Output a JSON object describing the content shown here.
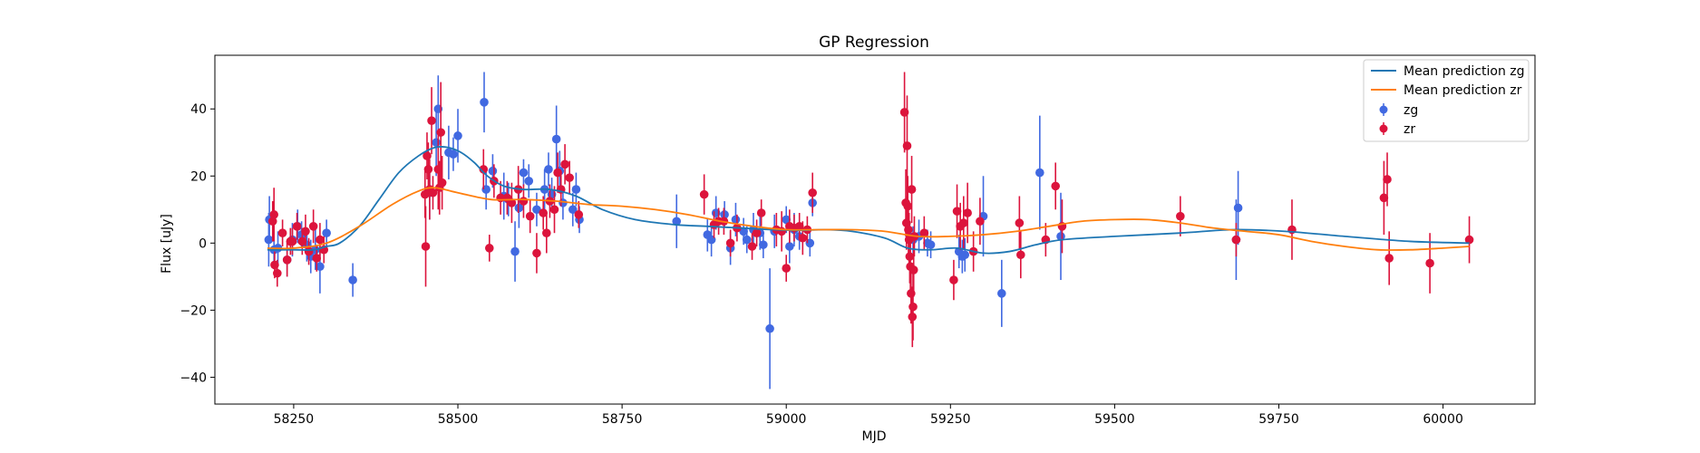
{
  "chart_data": {
    "type": "scatter",
    "title": "GP Regression",
    "xlabel": "MJD",
    "ylabel": "Flux [uJy]",
    "xlim": [
      58130,
      60140
    ],
    "ylim": [
      -48,
      56
    ],
    "xticks": [
      58250,
      58500,
      58750,
      59000,
      59250,
      59500,
      59750,
      60000
    ],
    "yticks": [
      -40,
      -20,
      0,
      20,
      40
    ],
    "grid": false,
    "legend_position": "top-right",
    "series": [
      {
        "name": "Mean prediction zg",
        "kind": "line",
        "color": "#1f77b4",
        "x": [
          58210,
          58250,
          58280,
          58300,
          58320,
          58350,
          58380,
          58410,
          58440,
          58465,
          58485,
          58505,
          58525,
          58545,
          58570,
          58600,
          58640,
          58680,
          58720,
          58770,
          58830,
          58880,
          58930,
          58980,
          59020,
          59060,
          59100,
          59150,
          59185,
          59220,
          59260,
          59300,
          59340,
          59380,
          59420,
          59500,
          59600,
          59680,
          59760,
          59850,
          59950,
          60040
        ],
        "y": [
          -2,
          -2,
          -2,
          -1,
          0,
          5,
          13,
          21,
          26,
          28.5,
          28.5,
          27,
          24,
          20,
          17,
          16,
          16,
          14,
          10,
          7,
          5.5,
          5,
          4.5,
          4,
          3.8,
          4,
          3.5,
          1.5,
          -1.5,
          -2,
          -1.5,
          -3,
          -2.5,
          -0.5,
          1,
          2,
          3,
          4,
          3.5,
          2,
          0.5,
          0
        ]
      },
      {
        "name": "Mean prediction zr",
        "kind": "line",
        "color": "#ff7f0e",
        "x": [
          58210,
          58250,
          58300,
          58350,
          58400,
          58440,
          58465,
          58500,
          58550,
          58600,
          58650,
          58700,
          58750,
          58800,
          58850,
          58900,
          58950,
          59000,
          59050,
          59100,
          59150,
          59200,
          59250,
          59300,
          59350,
          59400,
          59450,
          59500,
          59550,
          59600,
          59650,
          59700,
          59750,
          59800,
          59850,
          59900,
          59950,
          60000,
          60040
        ],
        "y": [
          -1.5,
          -1.5,
          0,
          5,
          11.5,
          15.5,
          16.5,
          15,
          13,
          13,
          12.5,
          11.5,
          11,
          10,
          8.5,
          6.5,
          5,
          4,
          4,
          4,
          3.5,
          2,
          2,
          2.5,
          3.5,
          5,
          6.5,
          7,
          7,
          6,
          4.5,
          3.5,
          2.5,
          0.5,
          -1,
          -2,
          -2,
          -1.5,
          -1
        ]
      },
      {
        "name": "zg",
        "kind": "errorbar",
        "color": "#4169e1",
        "x": [
          58212,
          58213,
          58220,
          58226,
          58240,
          58248,
          58256,
          58262,
          58270,
          58276,
          58283,
          58290,
          58300,
          58340,
          58457,
          58467,
          58470,
          58486,
          58493,
          58500,
          58540,
          58543,
          58553,
          58570,
          58577,
          58587,
          58593,
          58600,
          58608,
          58620,
          58632,
          58638,
          58643,
          58650,
          58655,
          58660,
          58675,
          58680,
          58685,
          58833,
          58880,
          58886,
          58893,
          58906,
          58915,
          58923,
          58935,
          58940,
          58950,
          58960,
          58965,
          58975,
          58982,
          59000,
          59005,
          59012,
          59020,
          59036,
          59040,
          59188,
          59193,
          59202,
          59215,
          59220,
          59263,
          59268,
          59272,
          59300,
          59328,
          59386,
          59418,
          59685,
          59688
        ],
        "y": [
          1,
          7,
          -2,
          -1.5,
          -5,
          1,
          5,
          2.5,
          -0.5,
          -4,
          -2,
          -7,
          3,
          -11,
          15,
          30,
          40,
          27,
          26.5,
          32,
          42,
          16,
          21.5,
          14,
          13,
          -2.5,
          10.5,
          21,
          18.5,
          10,
          16,
          22,
          14.5,
          31,
          21.5,
          12,
          10,
          16,
          7,
          6.5,
          2.5,
          1,
          9,
          8.5,
          -1.5,
          7,
          3.5,
          1,
          4,
          3,
          -0.5,
          -25.5,
          3.5,
          7,
          -1,
          4,
          2,
          0,
          12,
          2,
          1,
          2,
          0,
          -0.5,
          -2.5,
          -4,
          -3.5,
          8,
          -15,
          21,
          2,
          1,
          10.5
        ],
        "err": [
          8,
          7,
          5,
          5,
          5,
          5,
          5,
          4,
          5,
          5,
          6,
          8,
          4,
          5,
          8,
          10,
          10,
          8,
          5,
          8,
          9,
          6,
          5,
          7,
          5,
          9,
          6,
          4,
          5,
          5,
          6,
          5,
          5,
          10,
          6,
          5,
          5,
          5,
          4,
          8,
          5,
          5,
          5,
          4,
          5,
          5,
          4,
          4,
          5,
          5,
          4,
          18,
          5,
          4,
          5,
          5,
          4,
          4,
          4,
          4,
          4,
          5,
          4,
          4,
          5,
          5,
          5,
          12,
          10,
          17,
          13,
          12,
          11
        ]
      },
      {
        "name": "zr",
        "kind": "errorbar",
        "color": "#dc143c",
        "x": [
          58218,
          58220,
          58221,
          58225,
          58233,
          58240,
          58245,
          58248,
          58255,
          58263,
          58268,
          58273,
          58280,
          58285,
          58290,
          58296,
          58450,
          58451,
          58453,
          58455,
          58457,
          58460,
          58462,
          58470,
          58472,
          58474,
          58476,
          58539,
          58548,
          58555,
          58565,
          58575,
          58582,
          58592,
          58600,
          58610,
          58620,
          58630,
          58635,
          58640,
          58647,
          58652,
          58657,
          58663,
          58670,
          58684,
          58875,
          58890,
          58897,
          58905,
          58915,
          58925,
          58948,
          58955,
          58962,
          58985,
          58993,
          59000,
          59005,
          59012,
          59020,
          59025,
          59032,
          59040,
          59180,
          59182,
          59183,
          59184,
          59185,
          59186,
          59187,
          59188,
          59189,
          59190,
          59191,
          59192,
          59193,
          59194,
          59195,
          59210,
          59255,
          59260,
          59265,
          59270,
          59276,
          59285,
          59295,
          59355,
          59357,
          59395,
          59410,
          59420,
          59600,
          59685,
          59770,
          59910,
          59915,
          59918,
          59980,
          60040
        ],
        "y": [
          6.5,
          8.5,
          -6.5,
          -9,
          3,
          -5,
          0.5,
          0.5,
          5,
          0.5,
          3.5,
          -2.5,
          5,
          -4.5,
          1,
          -2,
          14.5,
          -1,
          26,
          22,
          16,
          36.5,
          15,
          22,
          16.5,
          33,
          18,
          22,
          -1.5,
          18.5,
          13.5,
          13.5,
          12,
          16,
          12.5,
          8,
          -3,
          9,
          3,
          12.5,
          10,
          21,
          16,
          23.5,
          19.5,
          8.5,
          14.5,
          5.5,
          6.5,
          6.5,
          0,
          4.5,
          -1,
          3,
          9,
          4,
          3.5,
          -7.5,
          5,
          4.5,
          5,
          1.5,
          4,
          15,
          39,
          12,
          6,
          29,
          11,
          4,
          1,
          -4,
          -7,
          -15,
          16,
          -22,
          -19,
          -8,
          2,
          3,
          -11,
          9.5,
          5,
          6,
          9,
          -2.5,
          6.5,
          6,
          -3.5,
          1,
          17,
          5,
          8,
          1,
          4,
          13.5,
          19,
          -4.5,
          -6,
          1
        ],
        "err": [
          6,
          8,
          4,
          4,
          4,
          5,
          4,
          4,
          4,
          4,
          5,
          4,
          5,
          4,
          5,
          4,
          7,
          12,
          7,
          8,
          9,
          10,
          5,
          12,
          8,
          15,
          8,
          6,
          4,
          5,
          5,
          5,
          6,
          7,
          5,
          5,
          6,
          5,
          6,
          5,
          7,
          6,
          5,
          6,
          5,
          4,
          6,
          4,
          4,
          4,
          4,
          4,
          4,
          4,
          4,
          5,
          6,
          4,
          5,
          4,
          4,
          5,
          4,
          6,
          12,
          10,
          8,
          15,
          9,
          8,
          8,
          8,
          8,
          9,
          10,
          9,
          10,
          8,
          6,
          5,
          6,
          8,
          7,
          8,
          9,
          6,
          7,
          8,
          7,
          5,
          7,
          8,
          6,
          5,
          9,
          11,
          8,
          8,
          9,
          7
        ]
      }
    ]
  }
}
